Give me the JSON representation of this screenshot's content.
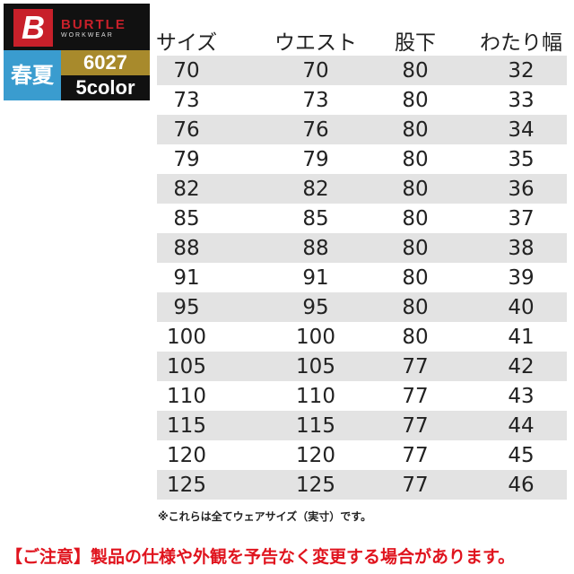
{
  "logo": {
    "brand": "BURTLE",
    "sub": "WORKWEAR",
    "season": "春夏",
    "model": "6027",
    "colors": "5color",
    "brand_color": "#c8202a"
  },
  "table": {
    "headers": [
      "サイズ",
      "ウエスト",
      "股下",
      "わたり幅"
    ],
    "rows": [
      [
        "70",
        "70",
        "80",
        "32"
      ],
      [
        "73",
        "73",
        "80",
        "33"
      ],
      [
        "76",
        "76",
        "80",
        "34"
      ],
      [
        "79",
        "79",
        "80",
        "35"
      ],
      [
        "82",
        "82",
        "80",
        "36"
      ],
      [
        "85",
        "85",
        "80",
        "37"
      ],
      [
        "88",
        "88",
        "80",
        "38"
      ],
      [
        "91",
        "91",
        "80",
        "39"
      ],
      [
        "95",
        "95",
        "80",
        "40"
      ],
      [
        "100",
        "100",
        "80",
        "41"
      ],
      [
        "105",
        "105",
        "77",
        "42"
      ],
      [
        "110",
        "110",
        "77",
        "43"
      ],
      [
        "115",
        "115",
        "77",
        "44"
      ],
      [
        "120",
        "120",
        "77",
        "45"
      ],
      [
        "125",
        "125",
        "77",
        "46"
      ]
    ]
  },
  "note": "※これらは全てウェアサイズ（実寸）です。",
  "warning": "【ご注意】製品の仕様や外観を予告なく変更する場合があります。"
}
